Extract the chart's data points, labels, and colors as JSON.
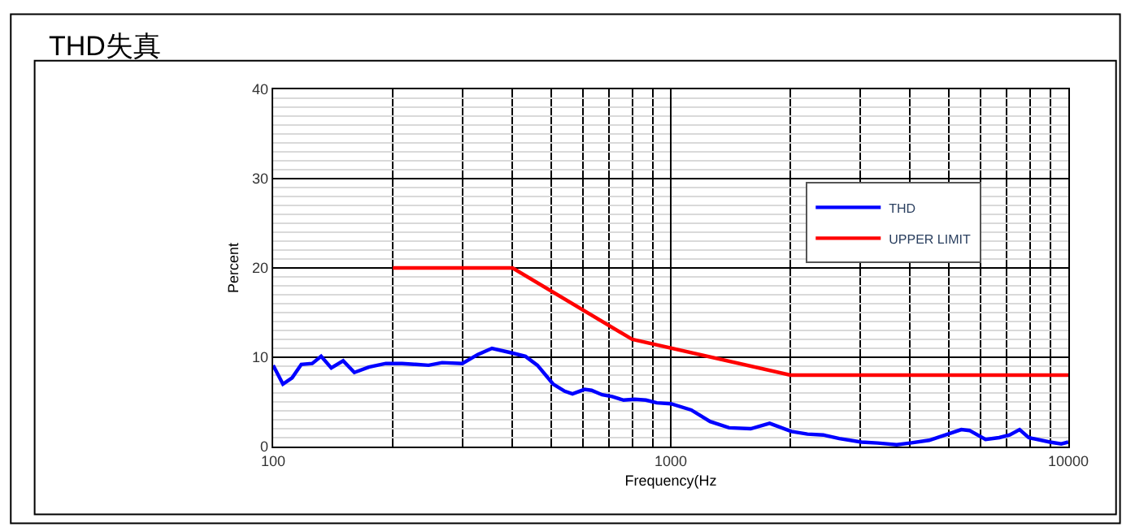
{
  "chart_data": {
    "type": "line",
    "title": "THD失真",
    "xlabel": "Frequency(Hz",
    "ylabel": "Percent",
    "log": "x",
    "xlim": [
      100,
      10000
    ],
    "xticks": [
      100,
      1000,
      10000
    ],
    "ylim": [
      0,
      40
    ],
    "yticks": [
      0,
      10,
      20,
      30,
      40
    ],
    "grid": true,
    "legend": "top right",
    "line_style": "solid",
    "marker": "none",
    "series": [
      {
        "name": "THD",
        "color": "#0000ff",
        "x": [
          100,
          105.8,
          111.6,
          117.7,
          125.4,
          132,
          140,
          150,
          160,
          174,
          192,
          211,
          228,
          246,
          266,
          299,
          327,
          355,
          397,
          431,
          462,
          506,
          541,
          566,
          607,
          632,
          672,
          712,
          761,
          811,
          866,
          922,
          1000,
          1126,
          1256,
          1402,
          1589,
          1773,
          2010,
          2207,
          2420,
          2654,
          3016,
          3314,
          3700,
          4000,
          4465,
          4980,
          5380,
          5640,
          6190,
          6700,
          7120,
          7540,
          7950,
          8990,
          9600,
          10000
        ],
        "values": [
          9.1,
          7.0,
          7.7,
          9.2,
          9.3,
          10.1,
          8.8,
          9.6,
          8.3,
          8.9,
          9.3,
          9.3,
          9.2,
          9.1,
          9.4,
          9.3,
          10.3,
          11.0,
          10.5,
          10.1,
          9.1,
          7.0,
          6.2,
          5.9,
          6.4,
          6.3,
          5.8,
          5.6,
          5.2,
          5.3,
          5.2,
          4.9,
          4.8,
          4.1,
          2.8,
          2.1,
          2.0,
          2.6,
          1.7,
          1.4,
          1.3,
          0.9,
          0.5,
          0.4,
          0.2,
          0.4,
          0.7,
          1.4,
          1.9,
          1.8,
          0.8,
          1.0,
          1.3,
          1.9,
          1.0,
          0.5,
          0.3,
          0.5
        ]
      },
      {
        "name": "UPPER LIMIT",
        "color": "#ff0000",
        "x": [
          200,
          400,
          800,
          2000,
          10000
        ],
        "values": [
          20,
          20,
          12,
          8,
          8
        ]
      }
    ]
  }
}
